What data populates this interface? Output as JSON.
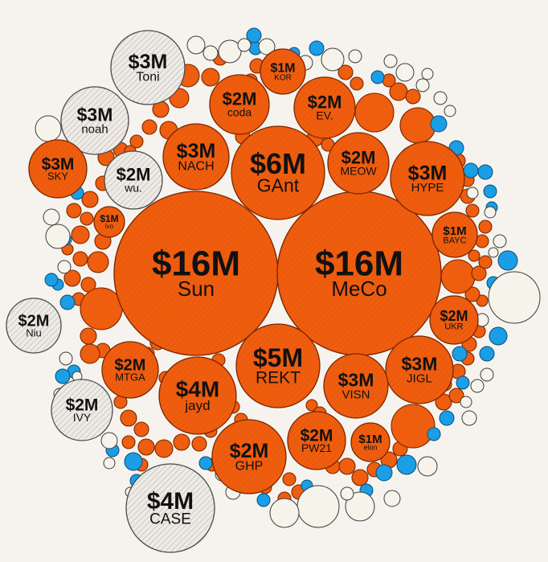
{
  "chart_data": {
    "type": "bubble-pack",
    "title": "",
    "colors": {
      "orange": "#ef5d0e",
      "orange_stroke": "#7a2600",
      "hatched_fill": "#eeebe6",
      "hatched_stroke": "#4a4a4a",
      "blue": "#1a9ee6",
      "blue_stroke": "#0b4d78",
      "cream": "#f6f3ea",
      "cream_stroke": "#3c3c3c"
    },
    "labeled": [
      {
        "value": "$16M",
        "name": "Sun",
        "style": "orange"
      },
      {
        "value": "$16M",
        "name": "MeCo",
        "style": "orange"
      },
      {
        "value": "$6M",
        "name": "GAnt",
        "style": "orange"
      },
      {
        "value": "$5M",
        "name": "REKT",
        "style": "orange"
      },
      {
        "value": "$4M",
        "name": "jayd",
        "style": "orange"
      },
      {
        "value": "$4M",
        "name": "CASE",
        "style": "hatched"
      },
      {
        "value": "$3M",
        "name": "Toni",
        "style": "hatched"
      },
      {
        "value": "$3M",
        "name": "noah",
        "style": "hatched"
      },
      {
        "value": "$3M",
        "name": "SKY",
        "style": "orange"
      },
      {
        "value": "$3M",
        "name": "NACH",
        "style": "orange"
      },
      {
        "value": "$3M",
        "name": "HYPE",
        "style": "orange"
      },
      {
        "value": "$3M",
        "name": "JIGL",
        "style": "orange"
      },
      {
        "value": "$3M",
        "name": "VISN",
        "style": "orange"
      },
      {
        "value": "$2M",
        "name": "GHP",
        "style": "orange"
      },
      {
        "value": "$2M",
        "name": "coda",
        "style": "orange"
      },
      {
        "value": "$2M",
        "name": "EV.",
        "style": "orange"
      },
      {
        "value": "$2M",
        "name": "MEOW",
        "style": "orange"
      },
      {
        "value": "$2M",
        "name": "wu.",
        "style": "hatched"
      },
      {
        "value": "$2M",
        "name": "Niu",
        "style": "hatched"
      },
      {
        "value": "$2M",
        "name": "MTGA",
        "style": "orange"
      },
      {
        "value": "$2M",
        "name": "IVY",
        "style": "hatched"
      },
      {
        "value": "$2M",
        "name": "PW21",
        "style": "orange"
      },
      {
        "value": "$2M",
        "name": "UKR",
        "style": "orange"
      },
      {
        "value": "$1M",
        "name": "KOR",
        "style": "orange"
      },
      {
        "value": "$1M",
        "name": "ivo",
        "style": "orange"
      },
      {
        "value": "$1M",
        "name": "BAYC",
        "style": "orange"
      },
      {
        "value": "$1M",
        "name": "elon",
        "style": "orange"
      }
    ],
    "unlabeled_counts": {
      "orange": 80,
      "blue": 36,
      "cream": 40
    }
  }
}
